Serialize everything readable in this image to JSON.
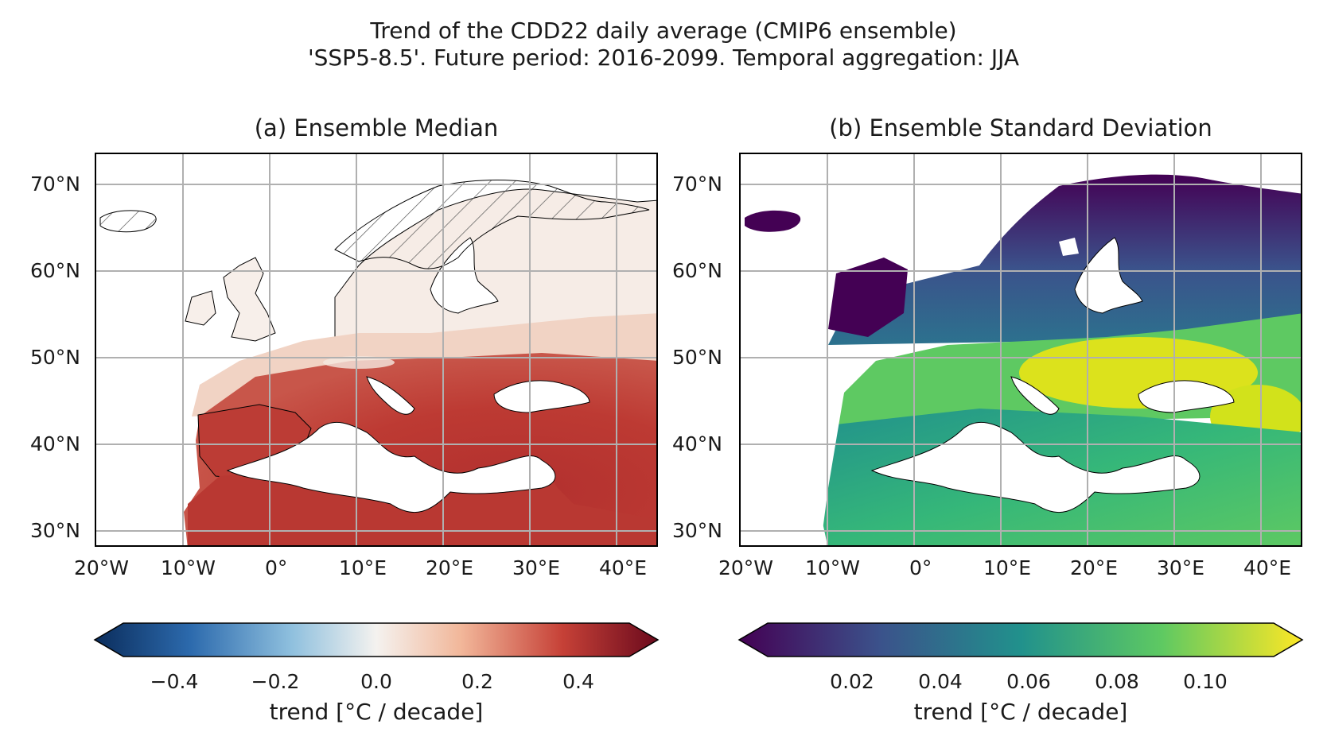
{
  "figure": {
    "title_line1": "Trend of the CDD22 daily average (CMIP6 ensemble)",
    "title_line2": "'SSP5-8.5'. Future period: 2016-2099. Temporal aggregation: JJA"
  },
  "panel_a": {
    "subtitle": "(a) Ensemble Median",
    "colormap": "RdBu_r",
    "colorbar": {
      "label": "trend [°C / decade]",
      "min": -0.5,
      "max": 0.5,
      "ticks": [
        "−0.4",
        "−0.2",
        "0.0",
        "0.2",
        "0.4"
      ],
      "tick_values": [
        -0.4,
        -0.2,
        0.0,
        0.2,
        0.4
      ],
      "extend": "both",
      "colors": [
        "#0b2d5c",
        "#2c6aad",
        "#8fc0de",
        "#f4f2ef",
        "#f2b79a",
        "#c64137",
        "#6b0a1d"
      ]
    },
    "hatching": "Scandinavia and Iceland"
  },
  "panel_b": {
    "subtitle": "(b) Ensemble Standard Deviation",
    "colormap": "viridis",
    "colorbar": {
      "label": "trend [°C / decade]",
      "min": 0.0,
      "max": 0.12,
      "ticks": [
        "0.02",
        "0.04",
        "0.06",
        "0.08",
        "0.10"
      ],
      "tick_values": [
        0.02,
        0.04,
        0.06,
        0.08,
        0.1
      ],
      "extend": "both",
      "colors": [
        "#440154",
        "#3b528b",
        "#21918c",
        "#5ec962",
        "#fde725"
      ]
    }
  },
  "axes": {
    "lon_labels": [
      "20°W",
      "10°W",
      "0°",
      "10°E",
      "20°E",
      "30°E",
      "40°E"
    ],
    "lon_values": [
      -20,
      -10,
      0,
      10,
      20,
      30,
      40
    ],
    "lat_labels": [
      "70°N",
      "60°N",
      "50°N",
      "40°N",
      "30°N"
    ],
    "lat_values": [
      70,
      60,
      50,
      40,
      30
    ],
    "lon_range": [
      -21,
      44
    ],
    "lat_range": [
      28,
      73.5
    ],
    "gridlines": true
  }
}
